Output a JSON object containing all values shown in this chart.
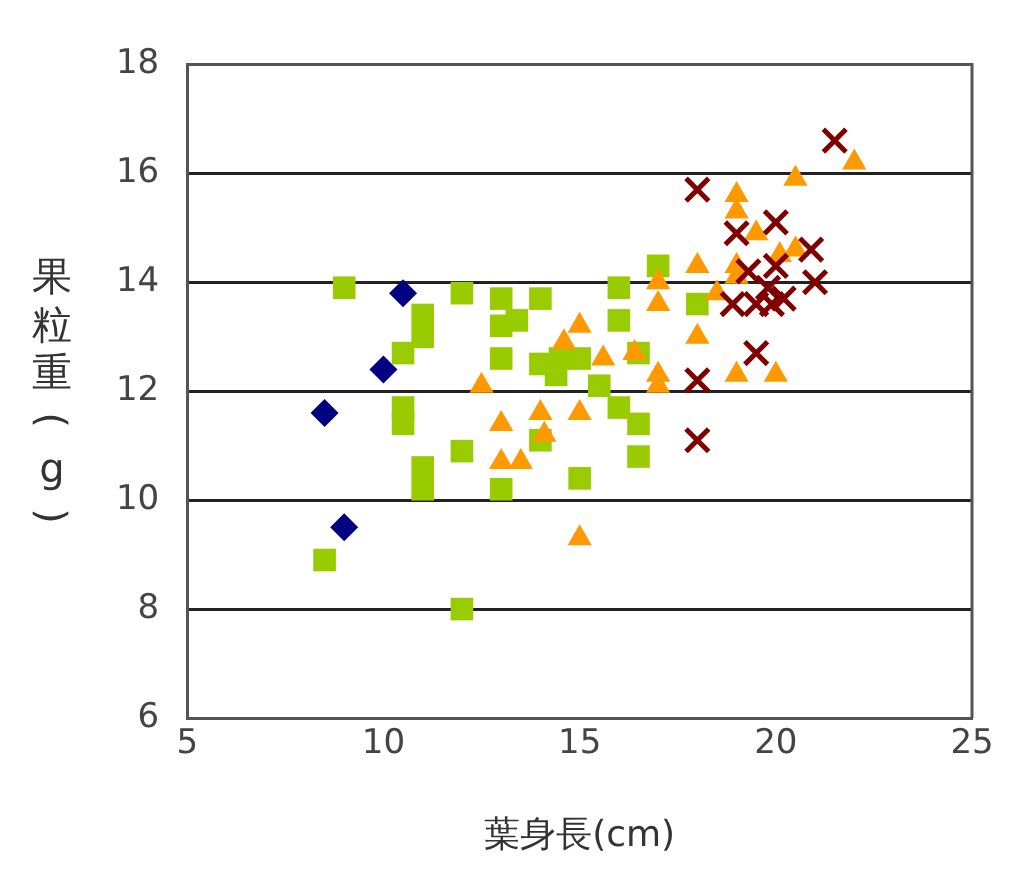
{
  "chart_data": {
    "type": "scatter",
    "xlabel": "葉身長(cm)",
    "ylabel": "果粒重(g)",
    "xlim": [
      5,
      25
    ],
    "xticks": [
      5,
      10,
      15,
      20,
      25
    ],
    "ylim": [
      6,
      18
    ],
    "yticks": [
      6,
      8,
      10,
      12,
      14,
      16,
      18
    ],
    "grid": "y",
    "legend": false,
    "series": [
      {
        "color": "#000080",
        "marker": "diamond",
        "x": [
          8.5,
          9,
          10,
          10.5
        ],
        "values": [
          11.6,
          9.5,
          12.4,
          13.8
        ]
      },
      {
        "color": "#99cc00",
        "marker": "square",
        "x": [
          9,
          8.5,
          10.5,
          10.5,
          10.5,
          11,
          11,
          11,
          11,
          12,
          12,
          12,
          13,
          13,
          13,
          13,
          13.4,
          14,
          14,
          14,
          14.4,
          14.5,
          15,
          15,
          15.5,
          16,
          16,
          16,
          16.5,
          16.5,
          16.5,
          17,
          18
        ],
        "values": [
          13.9,
          8.9,
          12.7,
          11.7,
          11.4,
          13.4,
          13,
          10.6,
          10.2,
          13.8,
          10.9,
          8,
          13.7,
          13.2,
          12.6,
          10.2,
          13.3,
          13.7,
          12.5,
          11.1,
          12.3,
          12.6,
          12.6,
          10.4,
          12.1,
          13.9,
          13.3,
          11.7,
          11.4,
          10.8,
          12.7,
          14.3,
          13.6
        ]
      },
      {
        "color": "#ff9900",
        "marker": "triangle",
        "x": [
          12.5,
          13,
          13,
          13.5,
          14,
          14.1,
          15,
          15,
          15,
          14.6,
          15.6,
          16.4,
          17,
          17,
          17,
          17,
          18,
          18,
          18.5,
          19,
          19,
          19,
          19,
          19,
          19.5,
          20,
          20.1,
          20.5,
          20.5,
          22
        ],
        "values": [
          12.1,
          11.4,
          10.7,
          10.7,
          11.6,
          11.2,
          13.2,
          11.6,
          9.3,
          12.9,
          12.6,
          12.7,
          14,
          13.6,
          12.3,
          12.1,
          14.3,
          13,
          13.8,
          15.6,
          15.3,
          14.3,
          14.1,
          12.3,
          14.9,
          12.3,
          14.5,
          14.6,
          15.9,
          16.2
        ]
      },
      {
        "color": "#800000",
        "marker": "cross",
        "x": [
          18,
          18,
          18,
          19,
          18.9,
          19.5,
          20,
          19.3,
          19.8,
          20.2,
          19.5,
          20,
          20.9,
          21,
          21.5,
          19.9
        ],
        "values": [
          15.7,
          12.2,
          11.1,
          14.9,
          13.6,
          12.7,
          15.1,
          14.2,
          13.9,
          13.7,
          13.6,
          14.3,
          14.6,
          14,
          16.6,
          13.6
        ]
      }
    ]
  }
}
